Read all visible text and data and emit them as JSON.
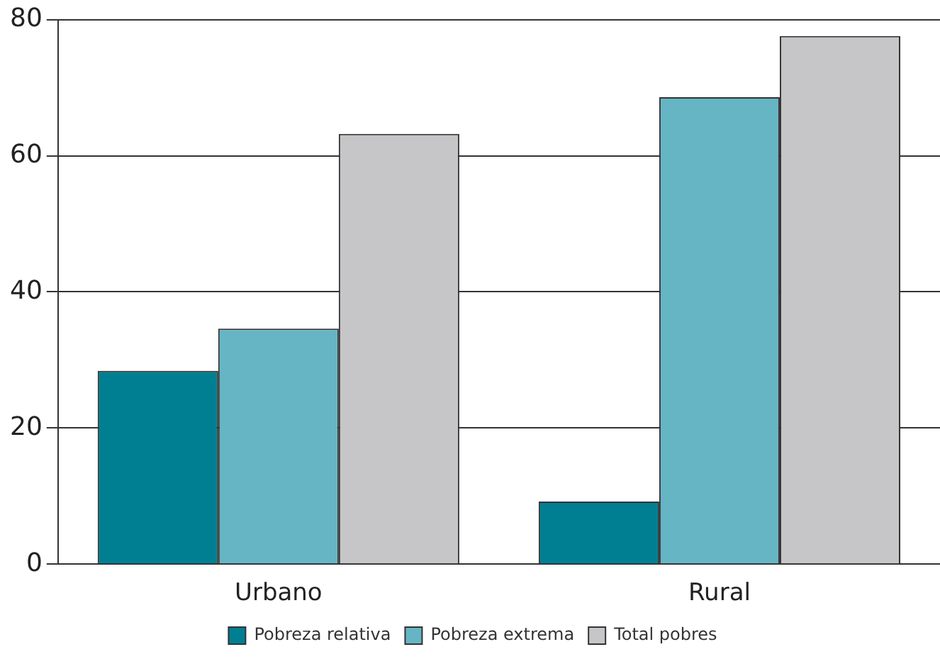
{
  "chart_data": {
    "type": "bar",
    "categories": [
      "Urbano",
      "Rural"
    ],
    "series": [
      {
        "name": "Pobreza relativa",
        "color": "#007f93",
        "values": [
          28.4,
          9.2
        ]
      },
      {
        "name": "Pobreza extrema",
        "color": "#66b5c4",
        "values": [
          34.6,
          68.6
        ]
      },
      {
        "name": "Total pobres",
        "color": "#c6c6c8",
        "values": [
          63.2,
          77.6
        ]
      }
    ],
    "ylim": [
      0,
      80
    ],
    "yticks": [
      0,
      20,
      40,
      60,
      80
    ],
    "grid": "y",
    "legend": "bottom"
  }
}
